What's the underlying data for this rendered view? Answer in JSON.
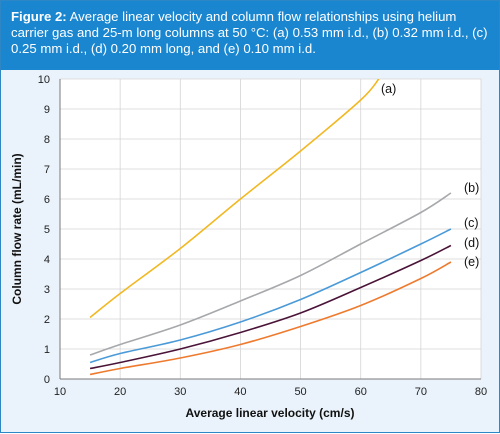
{
  "caption": {
    "prefix": "Figure 2:",
    "text": " Average linear velocity and column flow relationships using helium carrier gas and 25-m long columns at 50 °C: (a) 0.53 mm i.d., (b) 0.32 mm i.d., (c) 0.25 mm i.d., (d) 0.20 mm long, and (e) 0.10 mm i.d."
  },
  "chart_data": {
    "type": "line",
    "xlabel": "Average linear velocity (cm/s)",
    "ylabel": "Column flow rate (mL/min)",
    "xlim": [
      10,
      80
    ],
    "ylim": [
      0,
      10
    ],
    "xticks": [
      10,
      20,
      30,
      40,
      50,
      60,
      70,
      80
    ],
    "yticks": [
      0,
      1,
      2,
      3,
      4,
      5,
      6,
      7,
      8,
      9,
      10
    ],
    "grid": true,
    "series": [
      {
        "name": "(a)",
        "color": "#f2b822",
        "points": [
          [
            15,
            2.05
          ],
          [
            20,
            2.85
          ],
          [
            30,
            4.35
          ],
          [
            40,
            6.0
          ],
          [
            50,
            7.6
          ],
          [
            60,
            9.3
          ],
          [
            63,
            10.0
          ]
        ]
      },
      {
        "name": "(b)",
        "color": "#a6a8ab",
        "points": [
          [
            15,
            0.8
          ],
          [
            20,
            1.15
          ],
          [
            30,
            1.8
          ],
          [
            40,
            2.6
          ],
          [
            50,
            3.45
          ],
          [
            60,
            4.5
          ],
          [
            70,
            5.55
          ],
          [
            75,
            6.2
          ]
        ]
      },
      {
        "name": "(c)",
        "color": "#4a9ad8",
        "points": [
          [
            15,
            0.55
          ],
          [
            20,
            0.85
          ],
          [
            30,
            1.3
          ],
          [
            40,
            1.9
          ],
          [
            50,
            2.65
          ],
          [
            60,
            3.55
          ],
          [
            70,
            4.5
          ],
          [
            75,
            5.0
          ]
        ]
      },
      {
        "name": "(d)",
        "color": "#4a1438",
        "points": [
          [
            15,
            0.35
          ],
          [
            20,
            0.55
          ],
          [
            30,
            1.0
          ],
          [
            40,
            1.55
          ],
          [
            50,
            2.2
          ],
          [
            60,
            3.05
          ],
          [
            70,
            3.95
          ],
          [
            75,
            4.45
          ]
        ]
      },
      {
        "name": "(e)",
        "color": "#ee7a2e",
        "points": [
          [
            15,
            0.15
          ],
          [
            20,
            0.35
          ],
          [
            30,
            0.7
          ],
          [
            40,
            1.15
          ],
          [
            50,
            1.75
          ],
          [
            60,
            2.45
          ],
          [
            70,
            3.35
          ],
          [
            75,
            3.9
          ]
        ]
      }
    ]
  }
}
